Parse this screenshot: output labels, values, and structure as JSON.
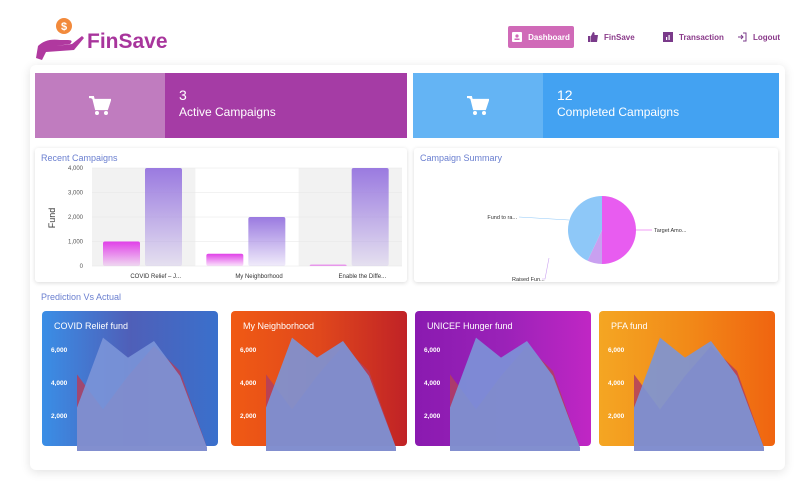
{
  "header": {
    "brand": "FinSave",
    "nav": [
      {
        "label": "Dashboard",
        "icon": "contact-card-icon",
        "active": true
      },
      {
        "label": "FinSave",
        "icon": "thumbs-up-icon"
      },
      {
        "label": "Transaction",
        "icon": "bar-chart-icon"
      },
      {
        "label": "Logout",
        "icon": "logout-icon"
      }
    ]
  },
  "stats": [
    {
      "value": "3",
      "label": "Active Campaigns",
      "icon": "cart-icon",
      "colors": [
        "#c07cbf",
        "#a53ca5"
      ]
    },
    {
      "value": "12",
      "label": "Completed Campaigns",
      "icon": "cart-icon",
      "colors": [
        "#64b4f4",
        "#43a2f2"
      ]
    }
  ],
  "recent": {
    "title": "Recent Campaigns"
  },
  "summary": {
    "title": "Campaign Summary"
  },
  "prediction": {
    "title": "Prediction Vs Actual",
    "cards": [
      {
        "title": "COVID Relief fund"
      },
      {
        "title": "My Neighborhood"
      },
      {
        "title": "UNICEF Hunger fund"
      },
      {
        "title": "PFA fund"
      }
    ],
    "ticks": [
      "6,000",
      "4,000",
      "2,000"
    ]
  },
  "chart_data": [
    {
      "type": "bar",
      "title": "Recent Campaigns",
      "ylabel": "Fund",
      "ylim": [
        0,
        4000
      ],
      "yticks": [
        "4,000",
        "3,000",
        "2,000",
        "1,000",
        "0"
      ],
      "categories": [
        "COVID Relief – J...",
        "My Neighborhood",
        "Enable the Diffe..."
      ],
      "series": [
        {
          "values": [
            1000,
            500,
            50
          ],
          "color": "#e040e8"
        },
        {
          "values": [
            4000,
            2000,
            4000
          ],
          "color": "#9a7ae0"
        }
      ]
    },
    {
      "type": "pie",
      "title": "Campaign Summary",
      "labels": [
        "Target Amo...",
        "Raised Fun...",
        "Fund to ra..."
      ],
      "values": [
        50,
        7,
        43
      ],
      "colors": [
        "#e85cf0",
        "#c9a0f0",
        "#8ec8f8"
      ]
    },
    {
      "type": "area",
      "ylim": [
        0,
        7000
      ],
      "series": [
        {
          "values": [
            4600,
            2500,
            4500,
            6300,
            4800,
            200
          ],
          "color": "#b0405f"
        },
        {
          "values": [
            2600,
            6800,
            5600,
            6600,
            4500,
            200
          ],
          "color": "#7b95d8"
        }
      ]
    }
  ]
}
